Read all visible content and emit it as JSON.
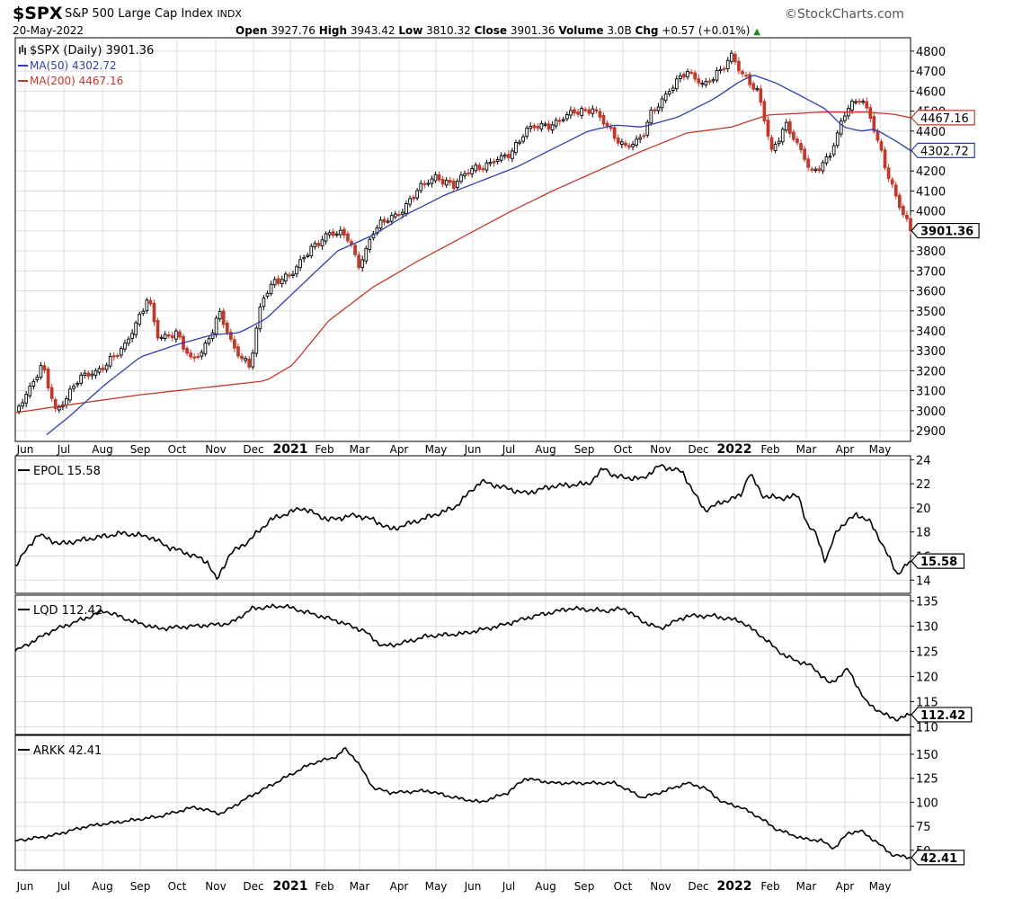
{
  "header": {
    "symbol": "$SPX",
    "name": "S&P 500 Large Cap Index",
    "exchange": "INDX",
    "date": "20-May-2022",
    "brand": "©StockCharts.com",
    "open_label": "Open",
    "open": "3927.76",
    "high_label": "High",
    "high": "3943.42",
    "low_label": "Low",
    "low": "3810.32",
    "close_label": "Close",
    "close": "3901.36",
    "volume_label": "Volume",
    "volume": "3.0B",
    "chg_label": "Chg",
    "chg": "+0.57 (+0.01%)",
    "up_arrow": "▲"
  },
  "colors": {
    "up": "#000000",
    "down": "#c0392b",
    "ma50": "#2e3fa8",
    "ma200": "#c0392b",
    "line": "#000000",
    "grid": "#dcdcdc"
  },
  "x_axis": {
    "months": [
      {
        "label": "Jun"
      },
      {
        "label": "Jul"
      },
      {
        "label": "Aug"
      },
      {
        "label": "Sep"
      },
      {
        "label": "Oct"
      },
      {
        "label": "Nov"
      },
      {
        "label": "Dec"
      },
      {
        "label": "2021",
        "bold": true
      },
      {
        "label": "Feb"
      },
      {
        "label": "Mar"
      },
      {
        "label": "Apr"
      },
      {
        "label": "May"
      },
      {
        "label": "Jun"
      },
      {
        "label": "Jul"
      },
      {
        "label": "Aug"
      },
      {
        "label": "Sep"
      },
      {
        "label": "Oct"
      },
      {
        "label": "Nov"
      },
      {
        "label": "Dec"
      },
      {
        "label": "2022",
        "bold": true
      },
      {
        "label": "Feb"
      },
      {
        "label": "Mar"
      },
      {
        "label": "Apr"
      },
      {
        "label": "May"
      }
    ]
  },
  "chart_data": [
    {
      "type": "candlestick",
      "panel": "price",
      "legend_icon": "ohlc-icon",
      "title": "$SPX (Daily) 3901.36",
      "ylim": [
        2860,
        4840
      ],
      "yticks": [
        2900,
        3000,
        3100,
        3200,
        3300,
        3400,
        3500,
        3600,
        3700,
        3800,
        3900,
        4000,
        4100,
        4200,
        4300,
        4400,
        4500,
        4600,
        4700,
        4800
      ],
      "anchors": [
        [
          0,
          3000
        ],
        [
          0.03,
          3220
        ],
        [
          0.045,
          3000
        ],
        [
          0.07,
          3150
        ],
        [
          0.09,
          3200
        ],
        [
          0.12,
          3300
        ],
        [
          0.148,
          3570
        ],
        [
          0.16,
          3350
        ],
        [
          0.18,
          3400
        ],
        [
          0.197,
          3240
        ],
        [
          0.21,
          3300
        ],
        [
          0.228,
          3500
        ],
        [
          0.244,
          3300
        ],
        [
          0.262,
          3230
        ],
        [
          0.275,
          3550
        ],
        [
          0.29,
          3640
        ],
        [
          0.31,
          3700
        ],
        [
          0.33,
          3800
        ],
        [
          0.35,
          3900
        ],
        [
          0.37,
          3870
        ],
        [
          0.384,
          3730
        ],
        [
          0.4,
          3900
        ],
        [
          0.43,
          4000
        ],
        [
          0.45,
          4100
        ],
        [
          0.47,
          4180
        ],
        [
          0.49,
          4120
        ],
        [
          0.51,
          4220
        ],
        [
          0.53,
          4230
        ],
        [
          0.55,
          4280
        ],
        [
          0.57,
          4400
        ],
        [
          0.6,
          4440
        ],
        [
          0.62,
          4480
        ],
        [
          0.645,
          4520
        ],
        [
          0.668,
          4370
        ],
        [
          0.68,
          4330
        ],
        [
          0.7,
          4360
        ],
        [
          0.71,
          4480
        ],
        [
          0.73,
          4610
        ],
        [
          0.75,
          4690
        ],
        [
          0.77,
          4640
        ],
        [
          0.79,
          4700
        ],
        [
          0.8,
          4780
        ],
        [
          0.81,
          4710
        ],
        [
          0.83,
          4580
        ],
        [
          0.845,
          4300
        ],
        [
          0.86,
          4440
        ],
        [
          0.875,
          4310
        ],
        [
          0.89,
          4200
        ],
        [
          0.91,
          4270
        ],
        [
          0.93,
          4530
        ],
        [
          0.945,
          4570
        ],
        [
          0.958,
          4420
        ],
        [
          0.97,
          4250
        ],
        [
          0.982,
          4100
        ],
        [
          0.99,
          4000
        ],
        [
          1,
          3901
        ]
      ],
      "current": {
        "value": 3901.36,
        "label": "3901.36"
      }
    },
    {
      "type": "line",
      "panel": "price",
      "series": "ma50",
      "legend": "MA(50) 4302.72",
      "anchors": [
        [
          0.035,
          2880
        ],
        [
          0.06,
          2970
        ],
        [
          0.1,
          3130
        ],
        [
          0.14,
          3270
        ],
        [
          0.18,
          3330
        ],
        [
          0.22,
          3380
        ],
        [
          0.25,
          3390
        ],
        [
          0.28,
          3460
        ],
        [
          0.32,
          3630
        ],
        [
          0.36,
          3800
        ],
        [
          0.4,
          3880
        ],
        [
          0.44,
          3990
        ],
        [
          0.48,
          4080
        ],
        [
          0.52,
          4150
        ],
        [
          0.56,
          4220
        ],
        [
          0.6,
          4310
        ],
        [
          0.64,
          4400
        ],
        [
          0.67,
          4430
        ],
        [
          0.7,
          4420
        ],
        [
          0.74,
          4470
        ],
        [
          0.78,
          4560
        ],
        [
          0.81,
          4650
        ],
        [
          0.825,
          4680
        ],
        [
          0.85,
          4640
        ],
        [
          0.88,
          4570
        ],
        [
          0.905,
          4510
        ],
        [
          0.925,
          4420
        ],
        [
          0.945,
          4400
        ],
        [
          0.96,
          4410
        ],
        [
          0.98,
          4360
        ],
        [
          1,
          4302.72
        ]
      ],
      "current": {
        "value": 4302.72,
        "label": "4302.72"
      }
    },
    {
      "type": "line",
      "panel": "price",
      "series": "ma200",
      "legend": "MA(200) 4467.16",
      "anchors": [
        [
          0,
          2990
        ],
        [
          0.06,
          3030
        ],
        [
          0.14,
          3080
        ],
        [
          0.2,
          3110
        ],
        [
          0.24,
          3130
        ],
        [
          0.28,
          3150
        ],
        [
          0.31,
          3230
        ],
        [
          0.35,
          3450
        ],
        [
          0.4,
          3620
        ],
        [
          0.45,
          3750
        ],
        [
          0.5,
          3870
        ],
        [
          0.55,
          3990
        ],
        [
          0.6,
          4100
        ],
        [
          0.65,
          4200
        ],
        [
          0.7,
          4300
        ],
        [
          0.75,
          4390
        ],
        [
          0.8,
          4420
        ],
        [
          0.84,
          4480
        ],
        [
          0.9,
          4495
        ],
        [
          0.95,
          4495
        ],
        [
          0.98,
          4485
        ],
        [
          1,
          4467.16
        ]
      ],
      "current": {
        "value": 4467.16,
        "label": "4467.16"
      }
    },
    {
      "type": "line",
      "panel": "EPOL",
      "series": "EPOL",
      "legend": "EPOL 15.58",
      "ylim": [
        13.2,
        24.1
      ],
      "yticks": [
        14,
        16,
        18,
        20,
        22,
        24
      ],
      "anchors": [
        [
          0,
          15.2
        ],
        [
          0.025,
          17.8
        ],
        [
          0.05,
          17.0
        ],
        [
          0.08,
          17.4
        ],
        [
          0.12,
          17.9
        ],
        [
          0.15,
          17.6
        ],
        [
          0.17,
          16.8
        ],
        [
          0.2,
          16.0
        ],
        [
          0.215,
          15.5
        ],
        [
          0.225,
          14.0
        ],
        [
          0.24,
          16.2
        ],
        [
          0.26,
          17.2
        ],
        [
          0.285,
          19.0
        ],
        [
          0.32,
          20.0
        ],
        [
          0.35,
          19.0
        ],
        [
          0.38,
          19.4
        ],
        [
          0.4,
          19.0
        ],
        [
          0.42,
          18.2
        ],
        [
          0.46,
          19.2
        ],
        [
          0.49,
          20.0
        ],
        [
          0.52,
          22.2
        ],
        [
          0.54,
          21.8
        ],
        [
          0.57,
          21.2
        ],
        [
          0.6,
          21.8
        ],
        [
          0.64,
          22.0
        ],
        [
          0.658,
          23.3
        ],
        [
          0.67,
          22.6
        ],
        [
          0.7,
          22.4
        ],
        [
          0.72,
          23.5
        ],
        [
          0.745,
          23.0
        ],
        [
          0.76,
          21.0
        ],
        [
          0.77,
          19.8
        ],
        [
          0.79,
          20.5
        ],
        [
          0.81,
          21.0
        ],
        [
          0.82,
          22.9
        ],
        [
          0.835,
          21.0
        ],
        [
          0.855,
          20.8
        ],
        [
          0.875,
          21.0
        ],
        [
          0.885,
          18.5
        ],
        [
          0.895,
          17.8
        ],
        [
          0.905,
          15.5
        ],
        [
          0.918,
          18.2
        ],
        [
          0.94,
          19.5
        ],
        [
          0.955,
          18.8
        ],
        [
          0.965,
          17.5
        ],
        [
          0.985,
          14.5
        ],
        [
          1,
          15.58
        ]
      ],
      "current": {
        "value": 15.58,
        "label": "15.58"
      }
    },
    {
      "type": "line",
      "panel": "LQD",
      "series": "LQD",
      "legend": "LQD 112.42",
      "ylim": [
        109.2,
        135.6
      ],
      "yticks": [
        110,
        115,
        120,
        125,
        130,
        135
      ],
      "anchors": [
        [
          0,
          125.0
        ],
        [
          0.04,
          129.0
        ],
        [
          0.07,
          131.0
        ],
        [
          0.1,
          133.0
        ],
        [
          0.13,
          131.0
        ],
        [
          0.16,
          129.5
        ],
        [
          0.2,
          130.0
        ],
        [
          0.24,
          130.5
        ],
        [
          0.265,
          133.5
        ],
        [
          0.3,
          134.0
        ],
        [
          0.32,
          133.0
        ],
        [
          0.36,
          131.0
        ],
        [
          0.39,
          129.0
        ],
        [
          0.41,
          126.0
        ],
        [
          0.43,
          126.5
        ],
        [
          0.46,
          128.0
        ],
        [
          0.5,
          128.5
        ],
        [
          0.54,
          130.0
        ],
        [
          0.58,
          132.0
        ],
        [
          0.62,
          133.5
        ],
        [
          0.66,
          133.0
        ],
        [
          0.68,
          133.5
        ],
        [
          0.7,
          131.0
        ],
        [
          0.72,
          129.5
        ],
        [
          0.75,
          132.0
        ],
        [
          0.78,
          132.0
        ],
        [
          0.81,
          131.0
        ],
        [
          0.83,
          128.5
        ],
        [
          0.86,
          124.0
        ],
        [
          0.89,
          122.0
        ],
        [
          0.91,
          118.5
        ],
        [
          0.93,
          121.5
        ],
        [
          0.95,
          115.0
        ],
        [
          0.97,
          112.5
        ],
        [
          0.985,
          111.5
        ],
        [
          1,
          112.42
        ]
      ],
      "current": {
        "value": 112.42,
        "label": "112.42"
      }
    },
    {
      "type": "line",
      "panel": "ARKK",
      "series": "ARKK",
      "legend": "ARKK 42.41",
      "ylim": [
        32,
        165
      ],
      "yticks": [
        50,
        75,
        100,
        125,
        150
      ],
      "anchors": [
        [
          0,
          60
        ],
        [
          0.04,
          65
        ],
        [
          0.08,
          75
        ],
        [
          0.12,
          80
        ],
        [
          0.16,
          85
        ],
        [
          0.2,
          95
        ],
        [
          0.23,
          88
        ],
        [
          0.26,
          105
        ],
        [
          0.3,
          125
        ],
        [
          0.33,
          140
        ],
        [
          0.36,
          148
        ],
        [
          0.368,
          156
        ],
        [
          0.38,
          145
        ],
        [
          0.4,
          115
        ],
        [
          0.42,
          110
        ],
        [
          0.46,
          112
        ],
        [
          0.49,
          105
        ],
        [
          0.52,
          100
        ],
        [
          0.55,
          110
        ],
        [
          0.57,
          125
        ],
        [
          0.6,
          120
        ],
        [
          0.64,
          120
        ],
        [
          0.67,
          120
        ],
        [
          0.7,
          105
        ],
        [
          0.72,
          110
        ],
        [
          0.75,
          120
        ],
        [
          0.77,
          115
        ],
        [
          0.79,
          100
        ],
        [
          0.81,
          95
        ],
        [
          0.83,
          85
        ],
        [
          0.85,
          72
        ],
        [
          0.88,
          62
        ],
        [
          0.9,
          60
        ],
        [
          0.915,
          52
        ],
        [
          0.93,
          68
        ],
        [
          0.945,
          70
        ],
        [
          0.96,
          60
        ],
        [
          0.98,
          45
        ],
        [
          1,
          42.41
        ]
      ],
      "current": {
        "value": 42.41,
        "label": "42.41"
      }
    }
  ]
}
